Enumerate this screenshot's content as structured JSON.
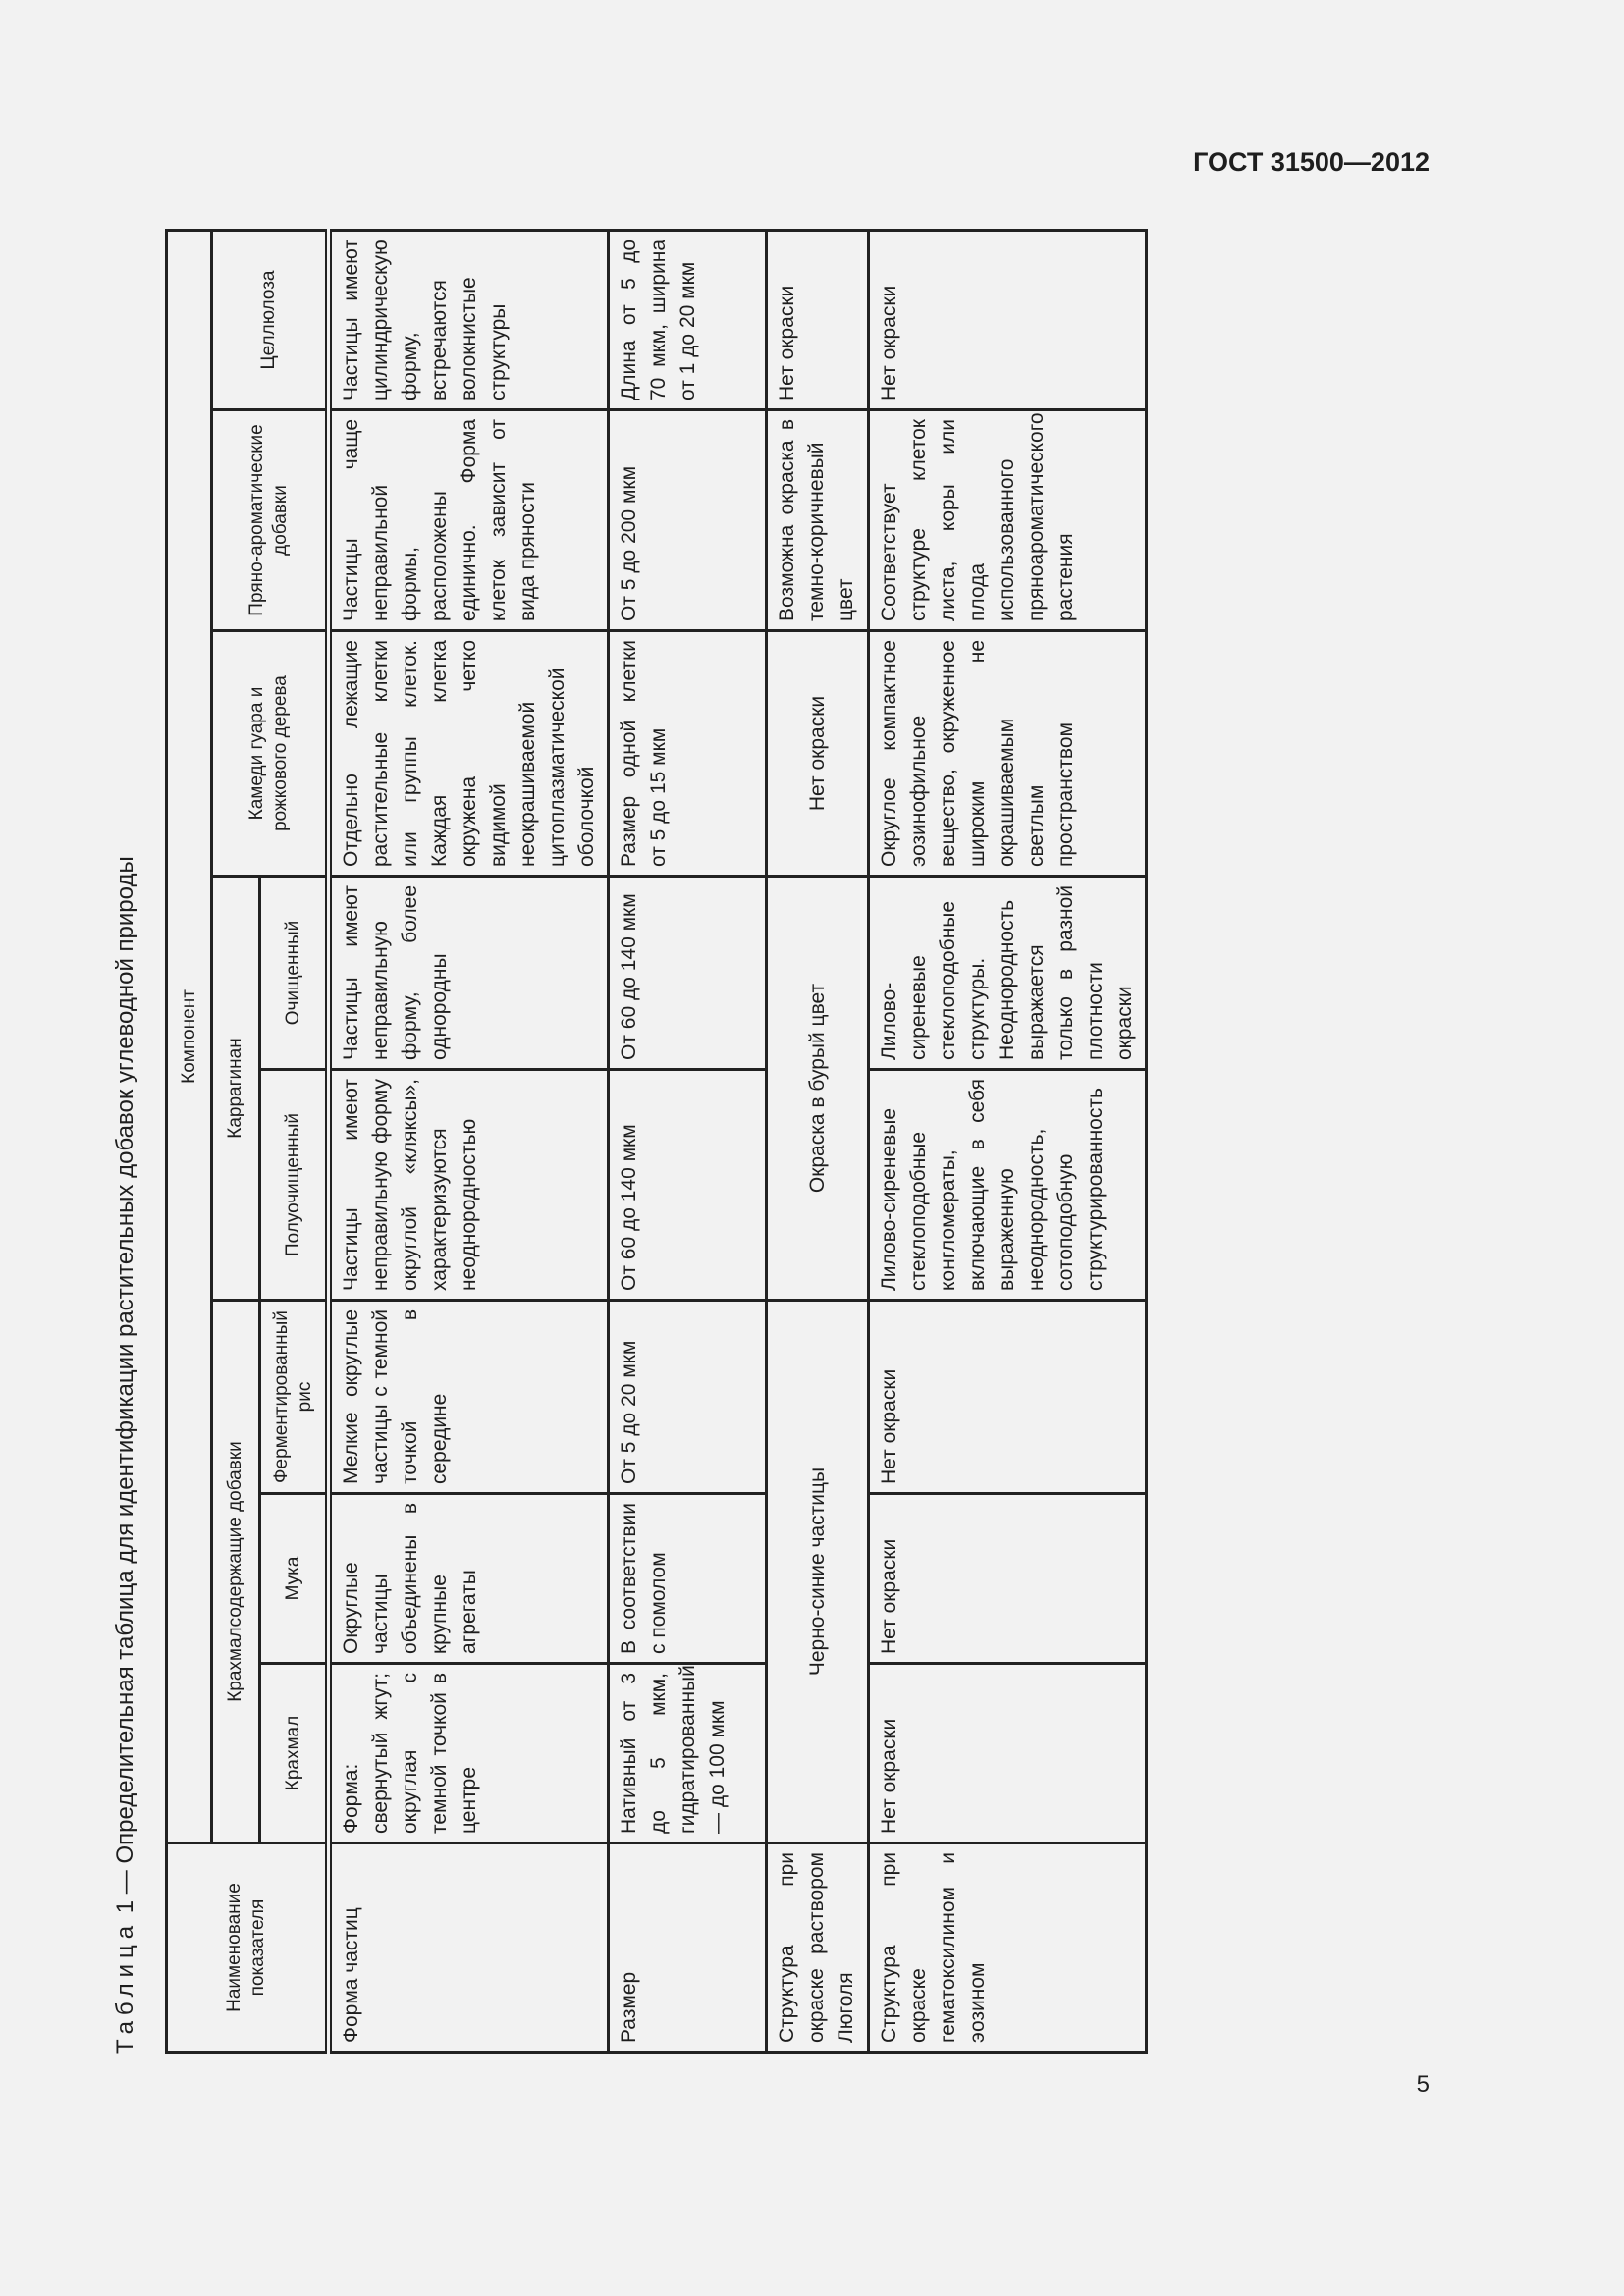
{
  "header": {
    "doc_code": "ГОСТ 31500—2012"
  },
  "caption": {
    "prefix": "Таблица",
    "text": " 1 — Определительная таблица для идентификации растительных добавок углеводной природы"
  },
  "table": {
    "col_indicator": "Наименование показателя",
    "component": "Компонент",
    "groups": {
      "starch": "Крахмалсодержащие добавки",
      "carrageenan": "Каррагинан",
      "gums": "Камеди гуара и рожкового дерева",
      "spices": "Пряно-ароматические добавки",
      "cellulose": "Целлюлоза"
    },
    "subs": {
      "starch": "Крахмал",
      "flour": "Мука",
      "rice": "Ферментированный рис",
      "semi": "Полуочищенный",
      "refined": "Очищенный"
    },
    "rows": [
      {
        "label": "Форма частиц",
        "starch": "Форма: свернутый жгут; округлая с темной точкой в центре",
        "flour": "Округлые частицы объединены в крупные агрегаты",
        "rice": "Мелкие округлые частицы с темной точкой в середине",
        "semi": "Частицы имеют неправильную форму округлой «кляксы», характеризуются неоднородностью",
        "refined": "Частицы имеют неправильную форму, более однородны",
        "gums": "Отдельно лежащие растительные клетки или группы клеток. Каждая клетка окружена четко видимой неокрашиваемой цитоплазматической оболочкой",
        "spices": "Частицы чаще неправильной формы, расположены единично. Форма клеток зависит от вида пряности",
        "cellulose": "Частицы имеют цилиндрическую форму, встречаются волокнистые структуры"
      },
      {
        "label": "Размер",
        "starch": "Нативный от 3 до 5 мкм, гидратированный — до 100 мкм",
        "flour": "В соответствии с помолом",
        "rice": "От 5 до 20 мкм",
        "semi": "От 60 до 140 мкм",
        "refined": "От 60 до 140 мкм",
        "gums": "Размер одной клетки от 5 до 15 мкм",
        "spices": "От 5 до 200 мкм",
        "cellulose": "Длина от 5 до 70 мкм, ширина от 1 до 20 мкм"
      },
      {
        "label": "Структура при окраске раствором Люголя",
        "starch_group": "Черно-синие частицы",
        "carrageenan_group": "Окраска в бурый цвет",
        "gums": "Нет окраски",
        "spices": "Возможна окраска в темно-коричневый цвет",
        "cellulose": "Нет окраски"
      },
      {
        "label": "Структура при окраске гематоксилином и эозином",
        "starch": "Нет окраски",
        "flour": "Нет окраски",
        "rice": "Нет окраски",
        "semi": "Лилово-сиреневые стеклоподобные конгломераты, включающие в себя выраженную неоднородность, сотоподобную структурированность",
        "refined": "Лилово-сиреневые стеклоподобные структуры. Неоднородность выражается только в разной плотности окраски",
        "gums": "Округлое компактное эозинофильное вещество, окруженное широким не окрашиваемым светлым пространством",
        "spices": "Соответствует структуре клеток листа, коры или плода использованного пряноароматического растения",
        "cellulose": "Нет окраски"
      }
    ]
  },
  "footer": {
    "page": "5"
  }
}
